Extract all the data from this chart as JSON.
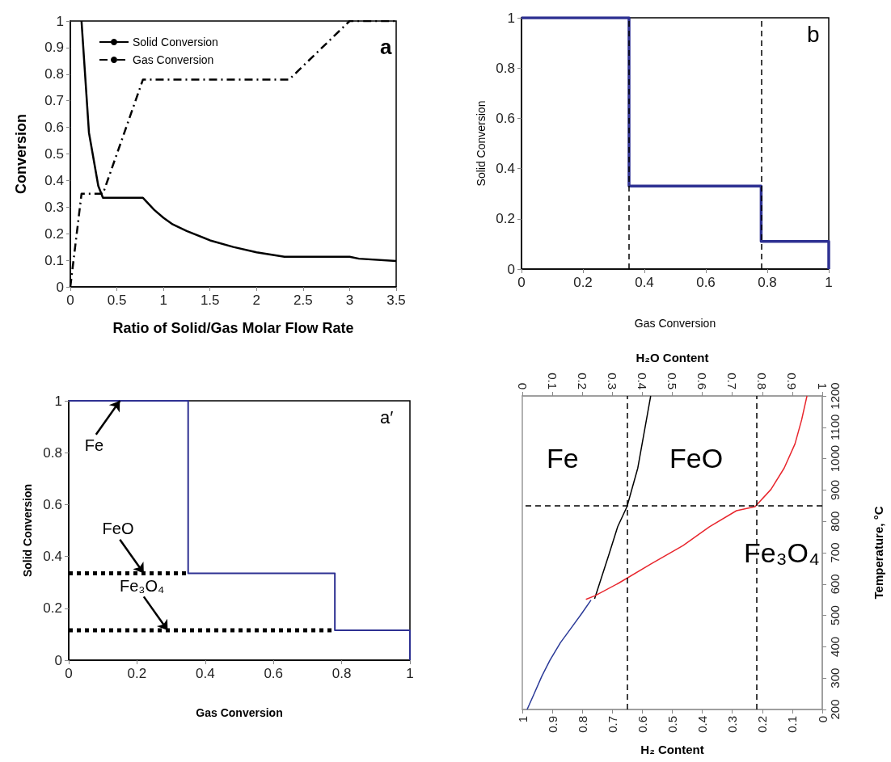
{
  "chart_data": [
    {
      "type": "line",
      "xlabel": "Ratio of Solid/Gas Molar Flow Rate",
      "ylabel": "Conversion",
      "xlim": [
        0,
        3.5
      ],
      "xticks": [
        0,
        0.5,
        1,
        1.5,
        2,
        2.5,
        3,
        3.5
      ],
      "ylim": [
        0,
        1
      ],
      "yticks": [
        0,
        0.1,
        0.2,
        0.3,
        0.4,
        0.5,
        0.6,
        0.7,
        0.8,
        0.9,
        1
      ],
      "legend": "top left",
      "marker": "none",
      "annotations": [
        "a"
      ],
      "series": [
        {
          "name": "Solid Conversion",
          "color": "#000000",
          "line_style": "solid",
          "x": [
            0.12,
            0.2,
            0.3,
            0.35,
            0.78,
            0.9,
            1.0,
            1.1,
            1.25,
            1.5,
            1.75,
            2.0,
            2.3,
            3.0,
            3.1,
            3.5
          ],
          "values": [
            1,
            0.58,
            0.38,
            0.335,
            0.335,
            0.29,
            0.26,
            0.235,
            0.21,
            0.175,
            0.15,
            0.13,
            0.113,
            0.113,
            0.106,
            0.097
          ]
        },
        {
          "name": "Gas Conversion",
          "color": "#000000",
          "line_style": "dashed",
          "x": [
            0,
            0.12,
            0.35,
            0.78,
            2.35,
            3.0,
            3.5
          ],
          "values": [
            0,
            0.35,
            0.35,
            0.78,
            0.78,
            1,
            1
          ]
        }
      ]
    },
    {
      "type": "step",
      "xlabel": "Gas Conversion",
      "ylabel": "Solid Conversion",
      "xlim": [
        0,
        1
      ],
      "xticks": [
        0,
        0.2,
        0.4,
        0.6,
        0.8,
        1
      ],
      "ylim": [
        0,
        1
      ],
      "yticks": [
        0,
        0.2,
        0.4,
        0.6,
        0.8,
        1
      ],
      "marker": "none",
      "annotations": [
        "b"
      ],
      "ref_lines": [
        {
          "axis": "x",
          "value": 0.35,
          "color": "#000000",
          "line_style": "dashed"
        },
        {
          "axis": "x",
          "value": 0.78,
          "color": "#000000",
          "line_style": "dashed"
        }
      ],
      "series": [
        {
          "color": "#2e3192",
          "x": [
            0,
            0.35,
            0.78,
            1
          ],
          "values": [
            1,
            0.33,
            0.11,
            0
          ]
        }
      ]
    },
    {
      "type": "step",
      "xlabel": "Gas Conversion",
      "ylabel": "Solid Conversion",
      "xlim": [
        0,
        1
      ],
      "xticks": [
        0,
        0.2,
        0.4,
        0.6,
        0.8,
        1
      ],
      "ylim": [
        0,
        1
      ],
      "yticks": [
        0,
        0.2,
        0.4,
        0.6,
        0.8,
        1
      ],
      "marker": "none",
      "annotations": [
        "a′",
        {
          "text": "Fe",
          "x": 0.15,
          "y": 1
        },
        {
          "text": "FeO",
          "x": 0.22,
          "y": 0.335
        },
        {
          "text": "Fe₃O₄",
          "x": 0.29,
          "y": 0.115
        }
      ],
      "series": [
        {
          "color": "#2e3192",
          "x": [
            0,
            0.35,
            0.78,
            1
          ],
          "values": [
            1,
            0.335,
            0.115,
            0
          ]
        },
        {
          "type": "line",
          "color": "#000000",
          "line_style": "dotted",
          "x": [
            0,
            0.35
          ],
          "values": [
            0.335,
            0.335
          ]
        },
        {
          "type": "line",
          "color": "#000000",
          "line_style": "dotted",
          "x": [
            0,
            0.78
          ],
          "values": [
            0.115,
            0.115
          ]
        }
      ]
    },
    {
      "type": "line",
      "xlabel": "H₂ Content",
      "x2label": "H₂O Content",
      "ylabel": "Temperature, °C",
      "xlim": [
        1,
        0
      ],
      "xticks": [
        1,
        0.9,
        0.8,
        0.7,
        0.6,
        0.5,
        0.4,
        0.3,
        0.2,
        0.1,
        0
      ],
      "x2lim": [
        0,
        1
      ],
      "x2ticks": [
        0,
        0.1,
        0.2,
        0.3,
        0.4,
        0.5,
        0.6,
        0.7,
        0.8,
        0.9,
        1
      ],
      "ylim": [
        200,
        1200
      ],
      "yticks": [
        200,
        300,
        400,
        500,
        600,
        700,
        800,
        900,
        1000,
        1100,
        1200
      ],
      "marker": "none",
      "annotations": [
        "Fe",
        "FeO",
        "Fe₃O₄"
      ],
      "ref_lines": [
        {
          "axis": "x",
          "value": 0.65,
          "color": "#000000",
          "line_style": "dashed"
        },
        {
          "axis": "x",
          "value": 0.22,
          "color": "#000000",
          "line_style": "dashed"
        },
        {
          "axis": "y",
          "value": 850,
          "color": "#000000",
          "line_style": "dashed"
        }
      ],
      "series": [
        {
          "color": "#2b3a98",
          "x": [
            0.984,
            0.962,
            0.935,
            0.908,
            0.873,
            0.837,
            0.802,
            0.771
          ],
          "values": [
            200,
            247,
            306,
            357,
            413,
            460,
            506,
            549
          ]
        },
        {
          "color": "#000000",
          "x": [
            0.759,
            0.713,
            0.682,
            0.651,
            0.615,
            0.572
          ],
          "values": [
            553,
            689,
            783,
            847,
            970,
            1200
          ]
        },
        {
          "color": "#e8262d",
          "x": [
            0.788,
            0.757,
            0.677,
            0.571,
            0.464,
            0.376,
            0.286,
            0.224,
            0.171,
            0.127,
            0.091,
            0.069,
            0.051
          ],
          "values": [
            551,
            563,
            604,
            664,
            723,
            783,
            834,
            847,
            902,
            970,
            1047,
            1123,
            1200
          ]
        }
      ]
    }
  ]
}
